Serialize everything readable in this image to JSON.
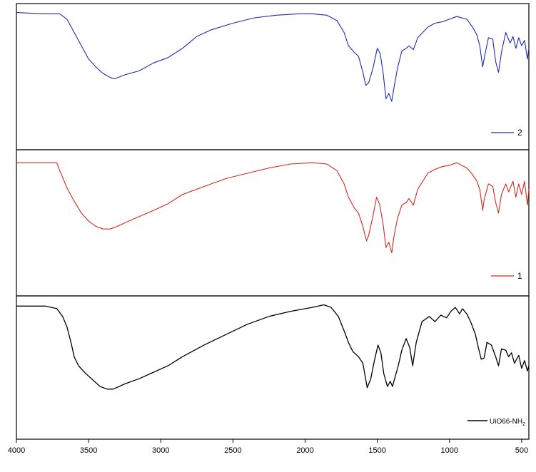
{
  "chart_data": {
    "type": "line",
    "xlim": [
      4000,
      450
    ],
    "reversed_x": true,
    "grid": false,
    "layout": "three vertically stacked panels sharing the x axis",
    "x_ticks": [
      4000,
      3500,
      3000,
      2500,
      2000,
      1500,
      1000,
      500
    ],
    "x_tick_labels": [
      "4000",
      "3500",
      "3000",
      "2500",
      "2000",
      "1500",
      "1000",
      "500"
    ],
    "panels": [
      {
        "legend": "2",
        "color": "#1f2bb8",
        "legend_position": "bottom-right",
        "ylim": [
          0,
          1
        ],
        "points": [
          [
            4000,
            0.97
          ],
          [
            3800,
            0.96
          ],
          [
            3700,
            0.96
          ],
          [
            3650,
            0.92
          ],
          [
            3600,
            0.82
          ],
          [
            3550,
            0.72
          ],
          [
            3500,
            0.62
          ],
          [
            3450,
            0.56
          ],
          [
            3400,
            0.51
          ],
          [
            3350,
            0.48
          ],
          [
            3320,
            0.47
          ],
          [
            3250,
            0.5
          ],
          [
            3150,
            0.53
          ],
          [
            3050,
            0.59
          ],
          [
            2950,
            0.63
          ],
          [
            2850,
            0.7
          ],
          [
            2750,
            0.79
          ],
          [
            2650,
            0.84
          ],
          [
            2500,
            0.89
          ],
          [
            2350,
            0.93
          ],
          [
            2200,
            0.95
          ],
          [
            2050,
            0.96
          ],
          [
            1950,
            0.96
          ],
          [
            1850,
            0.95
          ],
          [
            1780,
            0.91
          ],
          [
            1730,
            0.82
          ],
          [
            1700,
            0.72
          ],
          [
            1660,
            0.67
          ],
          [
            1630,
            0.64
          ],
          [
            1600,
            0.52
          ],
          [
            1580,
            0.42
          ],
          [
            1560,
            0.44
          ],
          [
            1530,
            0.55
          ],
          [
            1500,
            0.7
          ],
          [
            1480,
            0.66
          ],
          [
            1460,
            0.52
          ],
          [
            1440,
            0.32
          ],
          [
            1420,
            0.36
          ],
          [
            1400,
            0.3
          ],
          [
            1385,
            0.4
          ],
          [
            1360,
            0.55
          ],
          [
            1330,
            0.68
          ],
          [
            1300,
            0.7
          ],
          [
            1280,
            0.72
          ],
          [
            1250,
            0.69
          ],
          [
            1220,
            0.78
          ],
          [
            1150,
            0.86
          ],
          [
            1100,
            0.89
          ],
          [
            1050,
            0.9
          ],
          [
            1000,
            0.92
          ],
          [
            950,
            0.94
          ],
          [
            880,
            0.92
          ],
          [
            840,
            0.86
          ],
          [
            810,
            0.8
          ],
          [
            790,
            0.72
          ],
          [
            770,
            0.56
          ],
          [
            755,
            0.65
          ],
          [
            730,
            0.78
          ],
          [
            700,
            0.77
          ],
          [
            680,
            0.6
          ],
          [
            660,
            0.52
          ],
          [
            640,
            0.67
          ],
          [
            610,
            0.82
          ],
          [
            580,
            0.74
          ],
          [
            560,
            0.79
          ],
          [
            540,
            0.7
          ],
          [
            520,
            0.78
          ],
          [
            500,
            0.72
          ],
          [
            480,
            0.76
          ],
          [
            460,
            0.62
          ],
          [
            450,
            0.7
          ]
        ]
      },
      {
        "legend": "1",
        "color": "#d42a20",
        "legend_position": "bottom-right",
        "ylim": [
          0,
          1
        ],
        "points": [
          [
            4000,
            0.94
          ],
          [
            3800,
            0.94
          ],
          [
            3720,
            0.94
          ],
          [
            3700,
            0.88
          ],
          [
            3650,
            0.75
          ],
          [
            3600,
            0.65
          ],
          [
            3550,
            0.56
          ],
          [
            3500,
            0.5
          ],
          [
            3450,
            0.46
          ],
          [
            3400,
            0.44
          ],
          [
            3350,
            0.44
          ],
          [
            3300,
            0.46
          ],
          [
            3200,
            0.51
          ],
          [
            3050,
            0.58
          ],
          [
            2950,
            0.63
          ],
          [
            2850,
            0.7
          ],
          [
            2700,
            0.76
          ],
          [
            2550,
            0.82
          ],
          [
            2400,
            0.86
          ],
          [
            2250,
            0.9
          ],
          [
            2100,
            0.93
          ],
          [
            1950,
            0.94
          ],
          [
            1850,
            0.93
          ],
          [
            1780,
            0.88
          ],
          [
            1730,
            0.78
          ],
          [
            1700,
            0.68
          ],
          [
            1660,
            0.6
          ],
          [
            1630,
            0.56
          ],
          [
            1600,
            0.46
          ],
          [
            1575,
            0.35
          ],
          [
            1560,
            0.39
          ],
          [
            1530,
            0.54
          ],
          [
            1505,
            0.68
          ],
          [
            1485,
            0.63
          ],
          [
            1460,
            0.48
          ],
          [
            1440,
            0.3
          ],
          [
            1420,
            0.34
          ],
          [
            1400,
            0.26
          ],
          [
            1385,
            0.38
          ],
          [
            1360,
            0.52
          ],
          [
            1330,
            0.62
          ],
          [
            1300,
            0.64
          ],
          [
            1280,
            0.67
          ],
          [
            1250,
            0.62
          ],
          [
            1220,
            0.74
          ],
          [
            1150,
            0.86
          ],
          [
            1100,
            0.89
          ],
          [
            1050,
            0.91
          ],
          [
            1000,
            0.92
          ],
          [
            950,
            0.94
          ],
          [
            880,
            0.9
          ],
          [
            840,
            0.85
          ],
          [
            810,
            0.8
          ],
          [
            790,
            0.74
          ],
          [
            770,
            0.58
          ],
          [
            760,
            0.66
          ],
          [
            730,
            0.78
          ],
          [
            700,
            0.76
          ],
          [
            680,
            0.64
          ],
          [
            660,
            0.56
          ],
          [
            640,
            0.7
          ],
          [
            610,
            0.78
          ],
          [
            590,
            0.72
          ],
          [
            560,
            0.8
          ],
          [
            540,
            0.68
          ],
          [
            520,
            0.78
          ],
          [
            500,
            0.7
          ],
          [
            480,
            0.8
          ],
          [
            460,
            0.62
          ],
          [
            450,
            0.74
          ]
        ]
      },
      {
        "legend": "UiO66-NH",
        "legend_subscript": "2",
        "color": "#000000",
        "legend_position": "bottom-right",
        "ylim": [
          0,
          1
        ],
        "points": [
          [
            4000,
            0.96
          ],
          [
            3800,
            0.96
          ],
          [
            3720,
            0.94
          ],
          [
            3680,
            0.88
          ],
          [
            3650,
            0.8
          ],
          [
            3620,
            0.67
          ],
          [
            3600,
            0.57
          ],
          [
            3570,
            0.5
          ],
          [
            3520,
            0.44
          ],
          [
            3470,
            0.39
          ],
          [
            3420,
            0.34
          ],
          [
            3370,
            0.32
          ],
          [
            3330,
            0.32
          ],
          [
            3250,
            0.36
          ],
          [
            3150,
            0.4
          ],
          [
            3050,
            0.45
          ],
          [
            2970,
            0.49
          ],
          [
            2950,
            0.5
          ],
          [
            2850,
            0.57
          ],
          [
            2700,
            0.66
          ],
          [
            2550,
            0.74
          ],
          [
            2400,
            0.82
          ],
          [
            2250,
            0.88
          ],
          [
            2100,
            0.92
          ],
          [
            1950,
            0.95
          ],
          [
            1870,
            0.97
          ],
          [
            1820,
            0.95
          ],
          [
            1770,
            0.88
          ],
          [
            1730,
            0.77
          ],
          [
            1700,
            0.68
          ],
          [
            1670,
            0.61
          ],
          [
            1630,
            0.57
          ],
          [
            1600,
            0.52
          ],
          [
            1570,
            0.33
          ],
          [
            1545,
            0.4
          ],
          [
            1520,
            0.54
          ],
          [
            1495,
            0.66
          ],
          [
            1475,
            0.6
          ],
          [
            1455,
            0.44
          ],
          [
            1430,
            0.34
          ],
          [
            1410,
            0.38
          ],
          [
            1395,
            0.34
          ],
          [
            1380,
            0.4
          ],
          [
            1355,
            0.5
          ],
          [
            1330,
            0.62
          ],
          [
            1300,
            0.71
          ],
          [
            1275,
            0.64
          ],
          [
            1255,
            0.5
          ],
          [
            1230,
            0.68
          ],
          [
            1190,
            0.84
          ],
          [
            1140,
            0.88
          ],
          [
            1100,
            0.84
          ],
          [
            1060,
            0.89
          ],
          [
            1020,
            0.87
          ],
          [
            990,
            0.92
          ],
          [
            960,
            0.95
          ],
          [
            930,
            0.9
          ],
          [
            910,
            0.94
          ],
          [
            880,
            0.9
          ],
          [
            850,
            0.83
          ],
          [
            820,
            0.74
          ],
          [
            800,
            0.64
          ],
          [
            780,
            0.55
          ],
          [
            760,
            0.56
          ],
          [
            740,
            0.68
          ],
          [
            710,
            0.66
          ],
          [
            680,
            0.57
          ],
          [
            660,
            0.5
          ],
          [
            640,
            0.63
          ],
          [
            610,
            0.62
          ],
          [
            590,
            0.57
          ],
          [
            570,
            0.6
          ],
          [
            550,
            0.52
          ],
          [
            520,
            0.58
          ],
          [
            500,
            0.48
          ],
          [
            480,
            0.54
          ],
          [
            460,
            0.46
          ],
          [
            450,
            0.5
          ]
        ]
      }
    ]
  }
}
